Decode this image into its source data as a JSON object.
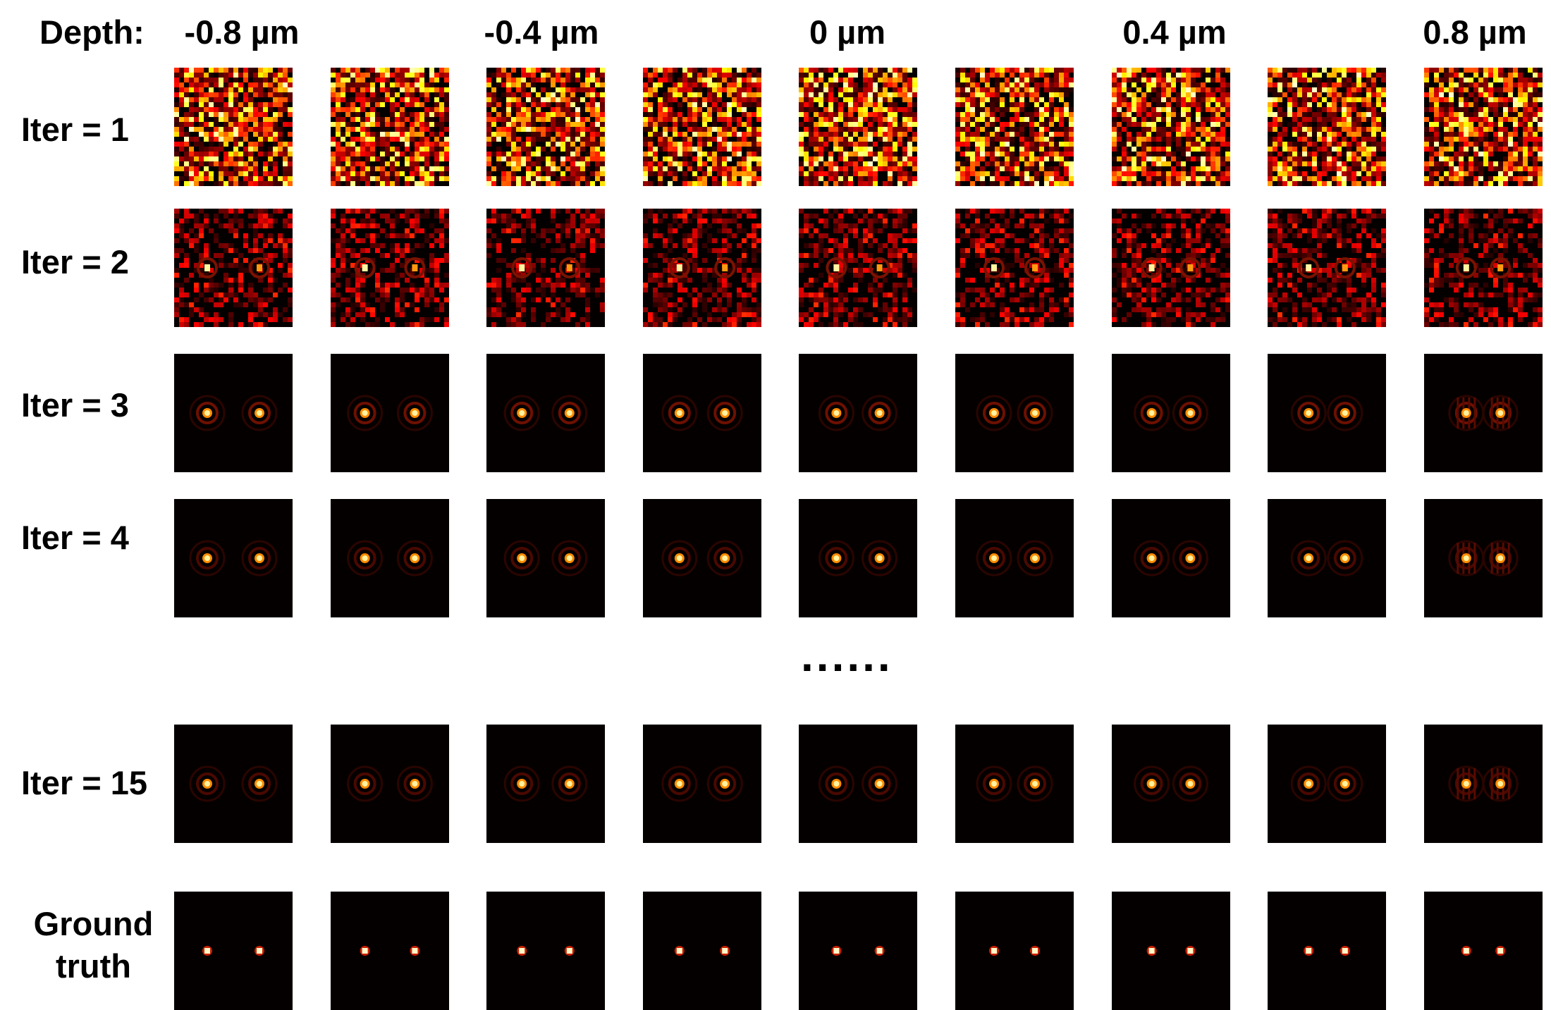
{
  "depth_title": "Depth:",
  "depth_labels": [
    "-0.8 µm",
    "-0.4 µm",
    "0 µm",
    "0.4 µm",
    "0.8 µm"
  ],
  "ellipsis": "......",
  "rows": [
    {
      "label": "Iter = 1",
      "kind": "noise"
    },
    {
      "label": "Iter = 2",
      "kind": "noisy-rings"
    },
    {
      "label": "Iter = 3",
      "kind": "rings-strong"
    },
    {
      "label": "Iter = 4",
      "kind": "rings"
    },
    {
      "label": "Iter = 15",
      "kind": "rings"
    },
    {
      "label": "Ground truth",
      "kind": "points"
    }
  ],
  "colormap": "hot",
  "colors": {
    "background": "#050000",
    "dark_red": "#5a0a00",
    "red": "#c81e00",
    "orange": "#ff8c00",
    "yellow": "#ffef5a",
    "white": "#ffffff"
  }
}
